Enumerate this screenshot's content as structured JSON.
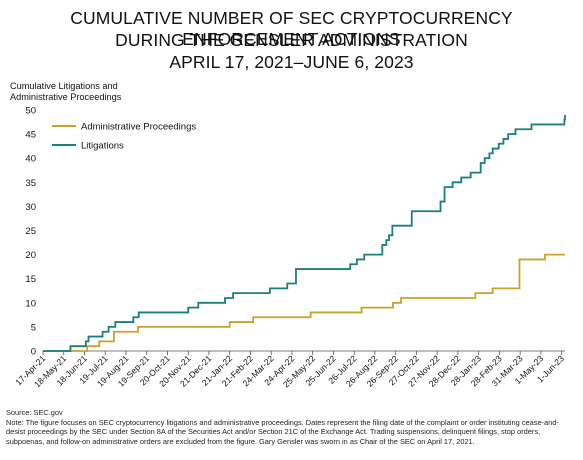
{
  "title_lines": [
    "CUMULATIVE NUMBER OF SEC CRYPTOCURRENCY ENFORCEMENT ACTIONS",
    "DURING THE GENSLER ADMINISTRATION",
    "APRIL 17, 2021–JUNE 6, 2023"
  ],
  "ylabel_lines": [
    "Cumulative Litigations and",
    "Administrative Proceedings"
  ],
  "source": "Source: SEC.gov",
  "note": "Note: The figure focuses on SEC cryptocurrency litigations and administrative proceedings. Dates represent the filing date of the complaint or order instituting cease-and-desist proceedings by the SEC under Section 8A of the Securities Act and/or Section 21C of the Exchange Act. Trading suspensions, delinquent filings, stop orders, subpoenas, and follow-on administrative orders are excluded from the figure. Gary Gensler was sworn in as Chair of the SEC on April 17, 2021.",
  "chart_data": {
    "type": "line",
    "x_type": "date",
    "x_range": [
      "2021-04-17",
      "2023-06-06"
    ],
    "ylim": [
      0,
      50
    ],
    "y_ticks": [
      0,
      5,
      10,
      15,
      20,
      25,
      30,
      35,
      40,
      45,
      50
    ],
    "x_tick_dates": [
      "2021-04-17",
      "2021-05-18",
      "2021-06-18",
      "2021-07-19",
      "2021-08-19",
      "2021-09-19",
      "2021-10-20",
      "2021-11-20",
      "2021-12-21",
      "2022-01-21",
      "2022-02-21",
      "2022-03-24",
      "2022-04-24",
      "2022-05-25",
      "2022-06-25",
      "2022-07-26",
      "2022-08-26",
      "2022-09-26",
      "2022-10-27",
      "2022-11-27",
      "2022-12-28",
      "2023-01-28",
      "2023-02-28",
      "2023-03-31",
      "2023-05-01",
      "2023-06-01"
    ],
    "x_tick_labels": [
      "17-Apr-21",
      "18-May-21",
      "18-Jun-21",
      "19-Jul-21",
      "19-Aug-21",
      "19-Sep-21",
      "20-Oct-21",
      "20-Nov-21",
      "21-Dec-21",
      "21-Jan-22",
      "21-Feb-22",
      "24-Mar-22",
      "24-Apr-22",
      "25-May-22",
      "25-Jun-22",
      "26-Jul-22",
      "26-Aug-22",
      "26-Sep-22",
      "27-Oct-22",
      "27-Nov-22",
      "28-Dec-22",
      "28-Jan-23",
      "28-Feb-23",
      "31-Mar-23",
      "1-May-23",
      "1-Jun-23"
    ],
    "grid": false,
    "legend_position": "top-left",
    "series": [
      {
        "name": "Administrative Proceedings",
        "color": "#c9a227",
        "step_points": [
          [
            "2021-04-17",
            0
          ],
          [
            "2021-06-22",
            1
          ],
          [
            "2021-07-10",
            2
          ],
          [
            "2021-08-01",
            4
          ],
          [
            "2021-09-06",
            5
          ],
          [
            "2022-01-21",
            6
          ],
          [
            "2022-02-25",
            7
          ],
          [
            "2022-05-22",
            8
          ],
          [
            "2022-08-06",
            9
          ],
          [
            "2022-09-22",
            10
          ],
          [
            "2022-10-04",
            11
          ],
          [
            "2023-01-23",
            12
          ],
          [
            "2023-02-18",
            13
          ],
          [
            "2023-03-30",
            19
          ],
          [
            "2023-05-07",
            20
          ],
          [
            "2023-06-06",
            20
          ]
        ]
      },
      {
        "name": "Litigations",
        "color": "#197f7d",
        "step_points": [
          [
            "2021-04-17",
            0
          ],
          [
            "2021-05-28",
            1
          ],
          [
            "2021-06-20",
            2
          ],
          [
            "2021-06-24",
            3
          ],
          [
            "2021-07-15",
            4
          ],
          [
            "2021-07-24",
            5
          ],
          [
            "2021-08-03",
            6
          ],
          [
            "2021-08-30",
            7
          ],
          [
            "2021-09-07",
            8
          ],
          [
            "2021-11-20",
            9
          ],
          [
            "2021-12-05",
            10
          ],
          [
            "2022-01-14",
            11
          ],
          [
            "2022-01-26",
            12
          ],
          [
            "2022-03-22",
            13
          ],
          [
            "2022-04-17",
            14
          ],
          [
            "2022-04-30",
            17
          ],
          [
            "2022-07-20",
            18
          ],
          [
            "2022-07-30",
            19
          ],
          [
            "2022-08-10",
            20
          ],
          [
            "2022-09-06",
            22
          ],
          [
            "2022-09-12",
            23
          ],
          [
            "2022-09-16",
            24
          ],
          [
            "2022-09-21",
            26
          ],
          [
            "2022-10-20",
            29
          ],
          [
            "2022-12-02",
            31
          ],
          [
            "2022-12-08",
            34
          ],
          [
            "2022-12-20",
            35
          ],
          [
            "2023-01-02",
            36
          ],
          [
            "2023-01-16",
            37
          ],
          [
            "2023-01-31",
            39
          ],
          [
            "2023-02-06",
            40
          ],
          [
            "2023-02-13",
            41
          ],
          [
            "2023-02-18",
            42
          ],
          [
            "2023-02-27",
            43
          ],
          [
            "2023-03-06",
            44
          ],
          [
            "2023-03-13",
            45
          ],
          [
            "2023-03-24",
            46
          ],
          [
            "2023-04-17",
            47
          ],
          [
            "2023-06-05",
            48
          ],
          [
            "2023-06-06",
            49
          ]
        ]
      }
    ]
  }
}
